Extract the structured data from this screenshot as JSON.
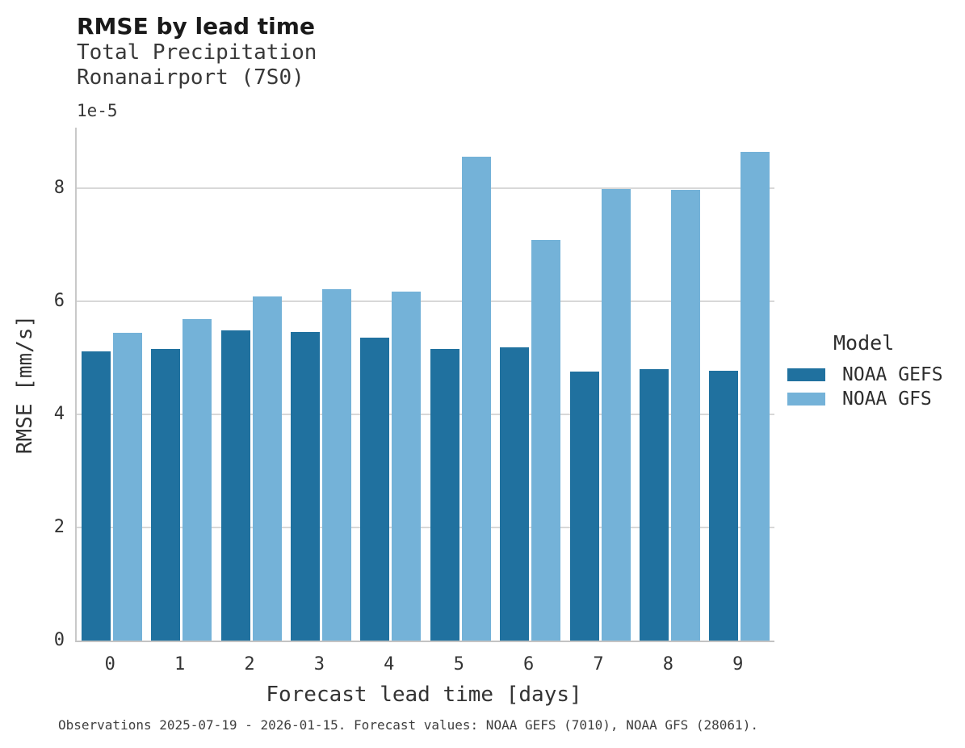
{
  "figure": {
    "title": "RMSE by lead time",
    "subtitle_line1": "Total Precipitation",
    "subtitle_line2": "Ronanairport (7S0)",
    "offset_text": "1e-5",
    "footer": "Observations 2025-07-19 - 2026-01-15. Forecast values: NOAA GEFS (7010), NOAA GFS (28061)."
  },
  "legend": {
    "title": "Model"
  },
  "colors": {
    "gefs": "#20719f",
    "gfs": "#74b2d8",
    "grid": "#d8d8d8",
    "spine": "#c9c9c9"
  },
  "chart_data": {
    "type": "bar",
    "title": "RMSE by lead time",
    "subtitle": [
      "Total Precipitation",
      "Ronanairport (7S0)"
    ],
    "categories": [
      "0",
      "1",
      "2",
      "3",
      "4",
      "5",
      "6",
      "7",
      "8",
      "9"
    ],
    "series": [
      {
        "name": "NOAA GEFS",
        "color_key": "gefs",
        "values": [
          5.11,
          5.16,
          5.48,
          5.46,
          5.35,
          5.16,
          5.18,
          4.75,
          4.8,
          4.77
        ]
      },
      {
        "name": "NOAA GFS",
        "color_key": "gfs",
        "values": [
          5.44,
          5.68,
          6.08,
          6.22,
          6.17,
          8.56,
          7.08,
          7.99,
          7.97,
          8.64
        ]
      }
    ],
    "value_multiplier": "1e-5",
    "xlabel": "Forecast lead time [days]",
    "ylabel": "RMSE [mm/s]",
    "yticks": [
      0,
      2,
      4,
      6,
      8
    ],
    "ylim": [
      0,
      9.07
    ],
    "grid": "horizontal",
    "legend_title": "Model",
    "legend_position": "right",
    "caption": "Observations 2025-07-19 - 2026-01-15. Forecast values: NOAA GEFS (7010), NOAA GFS (28061)."
  }
}
